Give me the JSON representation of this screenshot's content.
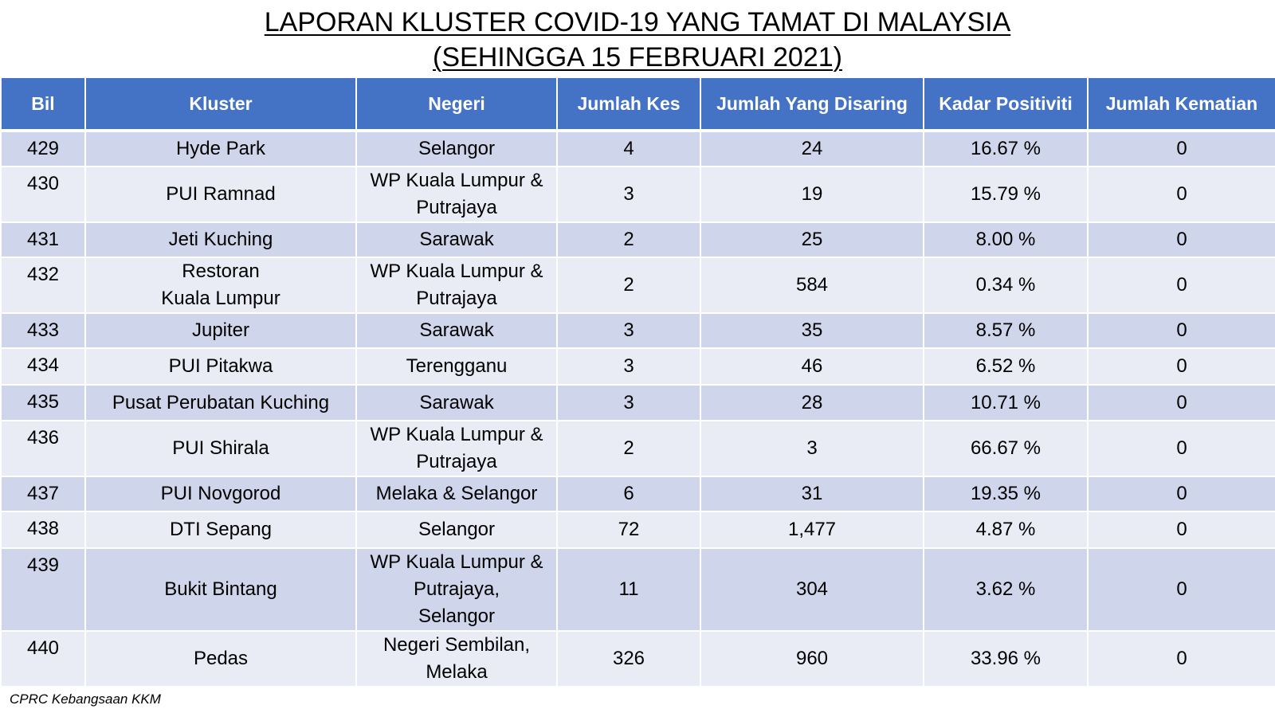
{
  "title": {
    "line1": "LAPORAN KLUSTER COVID-19 YANG TAMAT DI MALAYSIA",
    "line2": "(SEHINGGA 15 FEBRUARI 2021)"
  },
  "table": {
    "headers": [
      "Bil",
      "Kluster",
      "Negeri",
      "Jumlah Kes",
      "Jumlah Yang Disaring",
      "Kadar Positiviti",
      "Jumlah Kematian"
    ],
    "rows": [
      {
        "bil": "429",
        "kluster": [
          "Hyde Park"
        ],
        "negeri": [
          "Selangor"
        ],
        "kes": "4",
        "disaring": "24",
        "positiviti": "16.67 %",
        "kematian": "0"
      },
      {
        "bil": "430",
        "kluster": [
          "PUI Ramnad"
        ],
        "negeri": [
          "WP Kuala Lumpur &",
          "Putrajaya"
        ],
        "kes": "3",
        "disaring": "19",
        "positiviti": "15.79 %",
        "kematian": "0"
      },
      {
        "bil": "431",
        "kluster": [
          "Jeti Kuching"
        ],
        "negeri": [
          "Sarawak"
        ],
        "kes": "2",
        "disaring": "25",
        "positiviti": "8.00 %",
        "kematian": "0"
      },
      {
        "bil": "432",
        "kluster": [
          "Restoran",
          "Kuala Lumpur"
        ],
        "negeri": [
          "WP Kuala Lumpur &",
          "Putrajaya"
        ],
        "kes": "2",
        "disaring": "584",
        "positiviti": "0.34 %",
        "kematian": "0"
      },
      {
        "bil": "433",
        "kluster": [
          "Jupiter"
        ],
        "negeri": [
          "Sarawak"
        ],
        "kes": "3",
        "disaring": "35",
        "positiviti": "8.57 %",
        "kematian": "0"
      },
      {
        "bil": "434",
        "kluster": [
          "PUI Pitakwa"
        ],
        "negeri": [
          "Terengganu"
        ],
        "kes": "3",
        "disaring": "46",
        "positiviti": "6.52 %",
        "kematian": "0"
      },
      {
        "bil": "435",
        "kluster": [
          "Pusat Perubatan Kuching"
        ],
        "negeri": [
          "Sarawak"
        ],
        "kes": "3",
        "disaring": "28",
        "positiviti": "10.71 %",
        "kematian": "0"
      },
      {
        "bil": "436",
        "kluster": [
          "PUI Shirala"
        ],
        "negeri": [
          "WP Kuala Lumpur &",
          "Putrajaya"
        ],
        "kes": "2",
        "disaring": "3",
        "positiviti": "66.67 %",
        "kematian": "0"
      },
      {
        "bil": "437",
        "kluster": [
          "PUI Novgorod"
        ],
        "negeri": [
          "Melaka & Selangor"
        ],
        "kes": "6",
        "disaring": "31",
        "positiviti": "19.35 %",
        "kematian": "0"
      },
      {
        "bil": "438",
        "kluster": [
          "DTI Sepang"
        ],
        "negeri": [
          "Selangor"
        ],
        "kes": "72",
        "disaring": "1,477",
        "positiviti": "4.87 %",
        "kematian": "0"
      },
      {
        "bil": "439",
        "kluster": [
          "Bukit Bintang"
        ],
        "negeri": [
          "WP Kuala Lumpur &",
          "Putrajaya,",
          "Selangor"
        ],
        "kes": "11",
        "disaring": "304",
        "positiviti": "3.62 %",
        "kematian": "0"
      },
      {
        "bil": "440",
        "kluster": [
          "Pedas"
        ],
        "negeri": [
          "Negeri Sembilan,",
          "Melaka"
        ],
        "kes": "326",
        "disaring": "960",
        "positiviti": "33.96 %",
        "kematian": "0"
      }
    ]
  },
  "source": "CPRC Kebangsaan KKM",
  "colors": {
    "header_bg": "#4472c4",
    "row_odd": "#cfd5ea",
    "row_even": "#e9ebf5"
  }
}
